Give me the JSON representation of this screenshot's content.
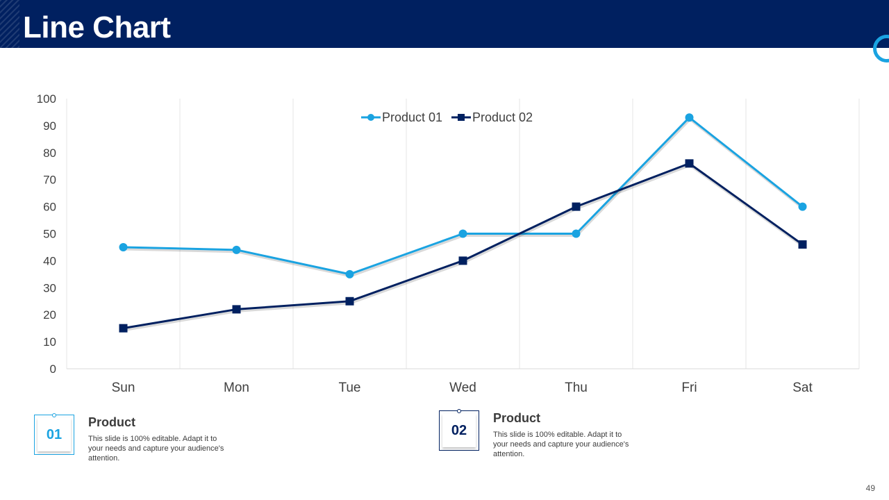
{
  "slide": {
    "title": "Line Chart",
    "page_number": "49"
  },
  "colors": {
    "header_bg": "#002060",
    "accent": "#1aa3e1",
    "series_1": "#1aa3e1",
    "series_2": "#002060"
  },
  "chart_data": {
    "type": "line",
    "categories": [
      "Sun",
      "Mon",
      "Tue",
      "Wed",
      "Thu",
      "Fri",
      "Sat"
    ],
    "series": [
      {
        "name": "Product 01",
        "values": [
          45,
          44,
          35,
          50,
          50,
          93,
          60
        ],
        "marker": "circle",
        "color": "#1aa3e1"
      },
      {
        "name": "Product 02",
        "values": [
          15,
          22,
          25,
          40,
          60,
          76,
          46
        ],
        "marker": "square",
        "color": "#002060"
      }
    ],
    "ylim": [
      0,
      100
    ],
    "yticks": [
      "0",
      "10",
      "20",
      "30",
      "40",
      "50",
      "60",
      "70",
      "80",
      "90",
      "100"
    ],
    "grid": "vertical",
    "legend": "top-center",
    "title": "",
    "xlabel": "",
    "ylabel": ""
  },
  "products": [
    {
      "number": "01",
      "title": "Product",
      "description": "This slide is 100% editable. Adapt it to your needs and capture your audience's attention."
    },
    {
      "number": "02",
      "title": "Product",
      "description": "This slide is 100% editable. Adapt it to your needs and capture your audience's attention."
    }
  ]
}
